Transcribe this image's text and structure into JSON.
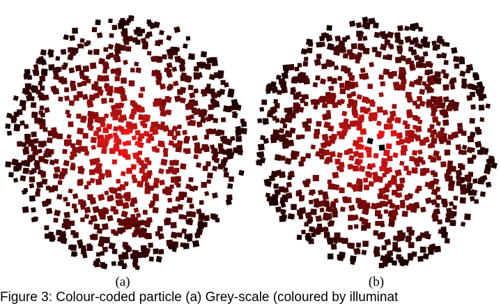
{
  "figure": {
    "panels": [
      {
        "label": "(a)"
      },
      {
        "label": "(b)"
      }
    ],
    "caption_text": "Figure 3: Colour-coded particle (a) Grey-scale (coloured by illuminat",
    "colors": {
      "center": "#ff1a1a",
      "edge": "#1a0000",
      "background": "#ffffff"
    }
  }
}
